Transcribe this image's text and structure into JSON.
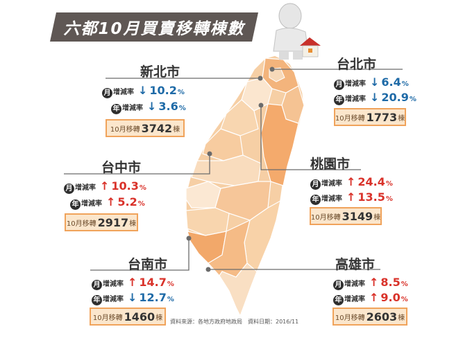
{
  "title": "六都10月買賣移轉棟數",
  "labels": {
    "monthly_badge": "月",
    "yearly_badge": "年",
    "change_label": "增減率",
    "percent": "%",
    "transfer_prefix": "10月移轉",
    "transfer_unit": "棟"
  },
  "cities": [
    {
      "name": "新北市",
      "monthly_dir": "down",
      "monthly": "10.2",
      "yearly_dir": "down",
      "yearly": "3.6",
      "transfers": "3742"
    },
    {
      "name": "台北市",
      "monthly_dir": "down",
      "monthly": "6.4",
      "yearly_dir": "down",
      "yearly": "20.9",
      "transfers": "1773"
    },
    {
      "name": "台中市",
      "monthly_dir": "up",
      "monthly": "10.3",
      "yearly_dir": "up",
      "yearly": "5.2",
      "transfers": "2917"
    },
    {
      "name": "桃園市",
      "monthly_dir": "up",
      "monthly": "24.4",
      "yearly_dir": "up",
      "yearly": "13.5",
      "transfers": "3149"
    },
    {
      "name": "台南市",
      "monthly_dir": "up",
      "monthly": "14.7",
      "yearly_dir": "down",
      "yearly": "12.7",
      "transfers": "1460"
    },
    {
      "name": "高雄市",
      "monthly_dir": "up",
      "monthly": "8.5",
      "yearly_dir": "up",
      "yearly": "9.0",
      "transfers": "2603"
    }
  ],
  "source": "資料來源：各地方政府地政局　資料日期：2016/11",
  "colors": {
    "banner": "#5f5754",
    "up_arrow": "#d9322a",
    "down_arrow": "#1e6aa7",
    "box_border": "#f0a35b",
    "box_fill": "#fbe6cc"
  }
}
